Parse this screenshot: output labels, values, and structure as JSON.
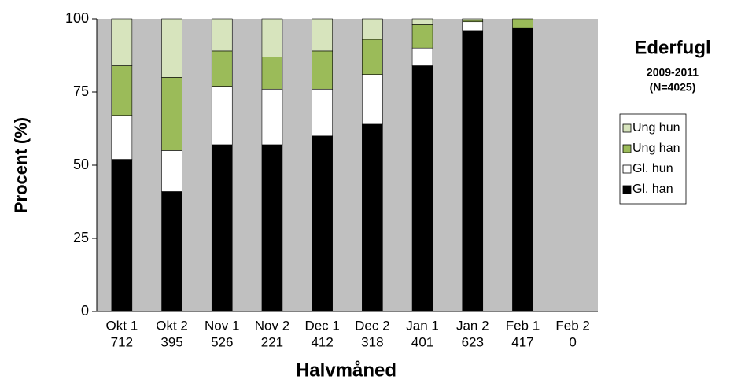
{
  "chart_data": {
    "type": "stacked_bar",
    "title": "Ederfugl",
    "subtitle": "2009-2011",
    "note": "(N=4025)",
    "x_label": "Halvmåned",
    "y_label": "Procent (%)",
    "categories": [
      "Okt 1",
      "Okt 2",
      "Nov 1",
      "Nov 2",
      "Dec 1",
      "Dec 2",
      "Jan 1",
      "Jan 2",
      "Feb 1",
      "Feb 2"
    ],
    "counts": [
      712,
      395,
      526,
      221,
      412,
      318,
      401,
      623,
      417,
      0
    ],
    "series": [
      {
        "name": "Gl. han",
        "color": "#000000",
        "values": [
          52,
          41,
          57,
          57,
          60,
          64,
          84,
          96,
          97,
          0
        ]
      },
      {
        "name": "Gl. hun",
        "color": "#ffffff",
        "values": [
          15,
          14,
          20,
          19,
          16,
          17,
          6,
          3,
          0,
          0
        ]
      },
      {
        "name": "Ung han",
        "color": "#9bbb59",
        "values": [
          17,
          25,
          12,
          11,
          13,
          12,
          8,
          0.5,
          3,
          0
        ]
      },
      {
        "name": "Ung hun",
        "color": "#d7e4bd",
        "values": [
          16,
          20,
          11,
          13,
          11,
          7,
          2,
          0.5,
          0,
          0
        ]
      }
    ],
    "ylim": [
      0,
      100
    ],
    "yticks": [
      0,
      25,
      50,
      75,
      100
    ],
    "grid": false,
    "plot_background": "#c0c0c0",
    "legend": "right"
  }
}
